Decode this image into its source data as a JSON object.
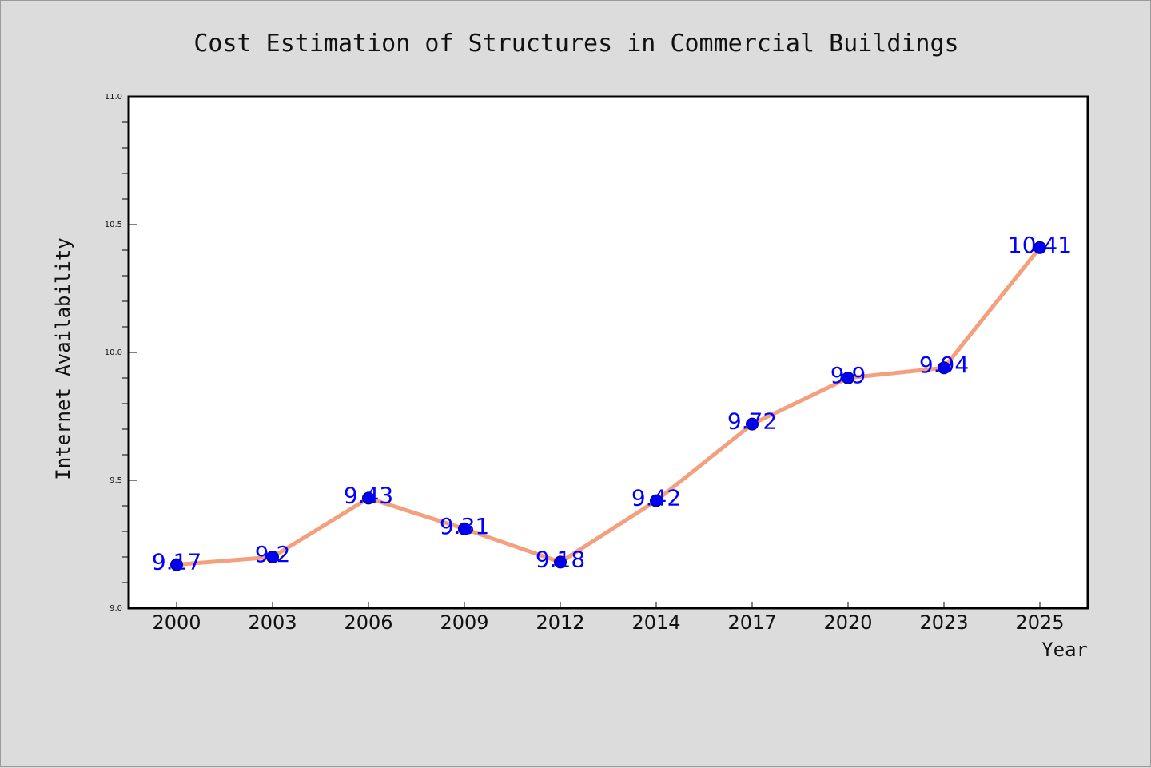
{
  "chart_data": {
    "type": "line",
    "title": "Cost Estimation of Structures in Commercial Buildings",
    "xlabel": "Year",
    "ylabel": "Internet Availability",
    "categories": [
      "2000",
      "2003",
      "2006",
      "2009",
      "2012",
      "2014",
      "2017",
      "2020",
      "2023",
      "2025"
    ],
    "series": [
      {
        "values": [
          9.17,
          9.2,
          9.43,
          9.31,
          9.18,
          9.42,
          9.72,
          9.9,
          9.94,
          10.41
        ],
        "data_labels": [
          "9.17",
          "9.2",
          "9.43",
          "9.31",
          "9.18",
          "9.42",
          "9.72",
          "9.9",
          "9.94",
          "10.41"
        ]
      }
    ],
    "ylim": [
      9.0,
      11.0
    ],
    "yticks": [
      "9.0",
      "9.5",
      "10.0",
      "10.5",
      "11.0"
    ],
    "grid": false,
    "legend": "none",
    "colors": {
      "line": "#f4a07e",
      "marker_fill": "#0000ee",
      "marker_edge": "#000066",
      "data_label": "#0000ff",
      "figure_background": "#dcdcdc",
      "plot_background": "#ffffff"
    }
  }
}
